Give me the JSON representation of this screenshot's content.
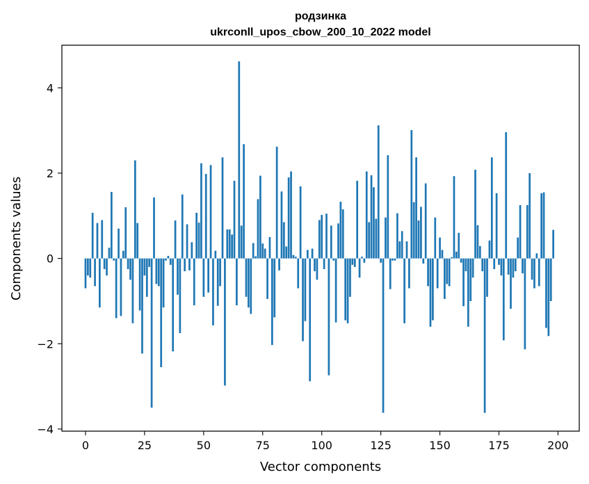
{
  "chart_data": {
    "type": "bar",
    "title_line1": "родзинка",
    "title_line2": "ukrconll_upos_cbow_200_10_2022 model",
    "xlabel": "Vector components",
    "ylabel": "Components values",
    "xlim": [
      -10,
      209
    ],
    "ylim": [
      -4.05,
      5.0
    ],
    "xticks": [
      0,
      25,
      50,
      75,
      100,
      125,
      150,
      175,
      200
    ],
    "yticks": [
      -4,
      -2,
      0,
      2,
      4
    ],
    "ytick_labels": [
      "−4",
      "−2",
      "0",
      "2",
      "4"
    ],
    "bar_color": "#1f77b4",
    "grid": false,
    "values": [
      -0.7,
      -0.4,
      -0.45,
      1.07,
      -0.65,
      0.83,
      -1.15,
      0.9,
      -0.25,
      -0.4,
      0.25,
      1.56,
      -0.05,
      -1.4,
      0.7,
      -1.35,
      0.18,
      1.2,
      -0.25,
      -0.5,
      -1.52,
      2.3,
      0.83,
      -1.22,
      -2.23,
      -0.4,
      -0.9,
      -0.2,
      -3.5,
      1.43,
      -0.6,
      -0.65,
      -2.55,
      -1.15,
      -0.05,
      0.06,
      -0.15,
      -2.18,
      0.89,
      -0.85,
      -1.75,
      1.5,
      -0.3,
      0.8,
      -0.28,
      0.38,
      -1.1,
      1.07,
      0.84,
      2.23,
      -0.9,
      1.98,
      -0.8,
      2.19,
      -1.57,
      0.18,
      -1.11,
      -0.65,
      2.37,
      -2.98,
      0.68,
      0.68,
      0.56,
      1.82,
      -1.1,
      4.62,
      0.77,
      2.68,
      -0.9,
      -1.15,
      -1.3,
      0.36,
      0.05,
      1.39,
      1.94,
      0.35,
      0.23,
      -0.95,
      0.5,
      -2.03,
      -1.38,
      2.62,
      -0.28,
      1.57,
      0.85,
      0.28,
      1.9,
      2.04,
      0.08,
      0.04,
      -0.7,
      1.69,
      -1.94,
      -1.47,
      0.2,
      -2.88,
      0.23,
      -0.3,
      -0.5,
      0.9,
      1.02,
      -0.25,
      1.05,
      -2.74,
      0.77,
      -0.05,
      -1.5,
      0.82,
      1.33,
      1.15,
      -1.45,
      -1.52,
      -0.9,
      -0.15,
      -0.2,
      1.82,
      -0.45,
      0.04,
      -0.1,
      2.04,
      0.85,
      1.95,
      1.67,
      0.93,
      3.12,
      -0.1,
      -3.62,
      0.96,
      2.42,
      -0.72,
      -0.05,
      -0.05,
      1.06,
      0.4,
      0.64,
      -1.52,
      0.4,
      -0.7,
      3.01,
      1.32,
      2.37,
      0.89,
      1.21,
      -0.12,
      1.76,
      -0.65,
      -1.6,
      -1.45,
      0.96,
      -0.7,
      0.49,
      0.2,
      -0.95,
      -0.6,
      -0.65,
      0.03,
      1.93,
      0.16,
      0.6,
      -0.1,
      -1.12,
      -0.3,
      -1.6,
      -1.0,
      -0.45,
      2.08,
      0.78,
      0.29,
      -0.3,
      -3.62,
      -0.9,
      0.42,
      2.37,
      -0.25,
      1.53,
      -0.15,
      -0.4,
      -1.92,
      2.96,
      -0.38,
      -1.18,
      -0.45,
      -0.3,
      0.49,
      1.25,
      -0.35,
      -2.13,
      1.25,
      2.0,
      -0.5,
      -0.7,
      0.12,
      -0.65,
      1.53,
      1.55,
      -1.63,
      -1.82,
      -1.0,
      0.67
    ]
  }
}
